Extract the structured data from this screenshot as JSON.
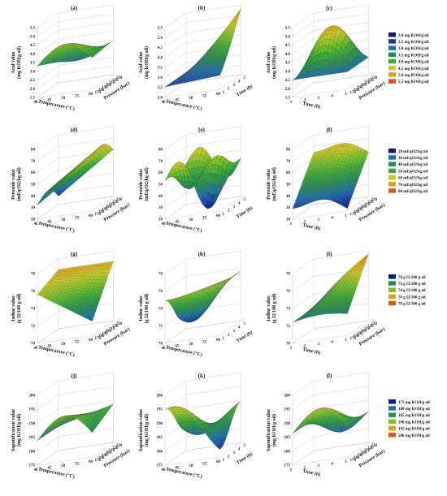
{
  "colorscale": [
    "#0a1a7a",
    "#1a3aa0",
    "#1f6fa8",
    "#2a8a55",
    "#3aa83a",
    "#7cc02c",
    "#c8c82a",
    "#e0a020",
    "#d85a18"
  ],
  "chart_data": [
    {
      "type": "surface",
      "label": "(a)",
      "zlabel": "Acid value\n(mg KOH/g oil)",
      "xlabel": "Temperature (°C)",
      "ylabel": "Pressure (bar)",
      "zticks": [
        "1.5",
        "2.0",
        "2.5",
        "3.0",
        "3.5",
        "4.0",
        "4.5",
        "5.0",
        "5.5"
      ],
      "xticks": [
        "40",
        "45",
        "50",
        "55",
        "60"
      ],
      "yticks": [
        "170",
        "180",
        "190",
        "200",
        "210",
        "220",
        "230"
      ],
      "zrange": [
        1.5,
        5.5
      ]
    },
    {
      "type": "surface",
      "label": "(b)",
      "zlabel": "Acid value\n(mg KOH/g oil)",
      "xlabel": "Temperature (°C)",
      "ylabel": "Time (h)",
      "zticks": [
        "2.0",
        "2.5",
        "3.0",
        "3.5",
        "4.0",
        "4.5",
        "5.0",
        "5.5"
      ],
      "xticks": [
        "40",
        "45",
        "50",
        "55",
        "60"
      ],
      "yticks": [
        "1",
        "2",
        "3",
        "4",
        "5"
      ],
      "zrange": [
        2.0,
        5.5
      ]
    },
    {
      "type": "surface",
      "label": "(c)",
      "zlabel": "Acid value\n(mg KOH/g oil)",
      "xlabel": "Time (h)",
      "ylabel": "Pressure (bar)",
      "zticks": [
        "1.5",
        "2.0",
        "2.5",
        "3.0",
        "3.5",
        "4.0",
        "4.5",
        "5.0",
        "5.5"
      ],
      "xticks": [
        "1",
        "2",
        "3",
        "4",
        "5"
      ],
      "yticks": [
        "170",
        "180",
        "190",
        "200",
        "210",
        "220",
        "230"
      ],
      "zrange": [
        1.5,
        5.5
      ]
    },
    {
      "type": "surface",
      "label": "(d)",
      "zlabel": "Peroxide value\n(mEq/O2/kg oil)",
      "xlabel": "Temperature (°C)",
      "ylabel": "Pressure (bar)",
      "zticks": [
        "20",
        "30",
        "40",
        "50",
        "60",
        "70",
        "80"
      ],
      "xticks": [
        "40",
        "45",
        "50",
        "55",
        "60"
      ],
      "yticks": [
        "170",
        "180",
        "190",
        "200",
        "210",
        "220",
        "230"
      ],
      "zrange": [
        20,
        80
      ]
    },
    {
      "type": "surface",
      "label": "(e)",
      "zlabel": "Peroxide value\n(mEq/O2/kg oil)",
      "xlabel": "Temperature (°C)",
      "ylabel": "Time (h)",
      "zticks": [
        "20",
        "30",
        "40",
        "50",
        "60",
        "70",
        "80"
      ],
      "xticks": [
        "40",
        "45",
        "50",
        "55",
        "60"
      ],
      "yticks": [
        "1",
        "2",
        "3",
        "4",
        "5"
      ],
      "zrange": [
        20,
        80
      ]
    },
    {
      "type": "surface",
      "label": "(f)",
      "zlabel": "Peroxide value\n(mEq/O2/kg oil)",
      "xlabel": "Time (h)",
      "ylabel": "Pressure (bar)",
      "zticks": [
        "20",
        "30",
        "40",
        "50",
        "60",
        "70",
        "80"
      ],
      "xticks": [
        "1",
        "2",
        "3",
        "4",
        "5"
      ],
      "yticks": [
        "170",
        "180",
        "190",
        "200",
        "210",
        "220",
        "230"
      ],
      "zrange": [
        20,
        80
      ]
    },
    {
      "type": "surface",
      "label": "(g)",
      "zlabel": "Iodine value\n(g I2/100 g oil)",
      "xlabel": "Temperature (°C)",
      "ylabel": "Pressure (bar)",
      "zticks": [
        "70",
        "72",
        "74",
        "76",
        "78"
      ],
      "xticks": [
        "40",
        "45",
        "50",
        "55",
        "60"
      ],
      "yticks": [
        "170",
        "180",
        "190",
        "200",
        "210",
        "220",
        "230"
      ],
      "zrange": [
        70,
        78
      ]
    },
    {
      "type": "surface",
      "label": "(h)",
      "zlabel": "Iodine value\n(g I2/100 g oil)",
      "xlabel": "Temperature (°C)",
      "ylabel": "Time (h)",
      "zticks": [
        "70",
        "72",
        "74",
        "76",
        "78"
      ],
      "xticks": [
        "40",
        "45",
        "50",
        "55",
        "60"
      ],
      "yticks": [
        "1",
        "2",
        "3",
        "4",
        "5"
      ],
      "zrange": [
        70,
        78
      ]
    },
    {
      "type": "surface",
      "label": "(i)",
      "zlabel": "Iodine value\n(g I2/100 g oil)",
      "xlabel": "Time (h)",
      "ylabel": "Pressure (bar)",
      "zticks": [
        "70",
        "72",
        "74",
        "76",
        "78"
      ],
      "xticks": [
        "1",
        "2",
        "3",
        "4",
        "5"
      ],
      "yticks": [
        "170",
        "180",
        "190",
        "200",
        "210",
        "220",
        "230"
      ],
      "zrange": [
        70,
        78
      ]
    },
    {
      "type": "surface",
      "label": "(j)",
      "zlabel": "Saponification value\n(mg KOH/g oil)",
      "xlabel": "Temperature (°C)",
      "ylabel": "Pressure (bar)",
      "zticks": [
        "175",
        "180",
        "185",
        "190",
        "195",
        "200"
      ],
      "xticks": [
        "40",
        "45",
        "50",
        "55",
        "60"
      ],
      "yticks": [
        "170",
        "180",
        "190",
        "200",
        "210",
        "220",
        "230"
      ],
      "zrange": [
        175,
        200
      ]
    },
    {
      "type": "surface",
      "label": "(k)",
      "zlabel": "Saponification value\n(mg KOH/g oil)",
      "xlabel": "Temperature (°C)",
      "ylabel": "Time (h)",
      "zticks": [
        "175",
        "180",
        "185",
        "190",
        "195",
        "200"
      ],
      "xticks": [
        "40",
        "45",
        "50",
        "55",
        "60"
      ],
      "yticks": [
        "1",
        "2",
        "3",
        "4",
        "5"
      ],
      "zrange": [
        175,
        200
      ]
    },
    {
      "type": "surface",
      "label": "(l)",
      "zlabel": "Saponification value\n(mg KOH/g oil)",
      "xlabel": "Time (h)",
      "ylabel": "Pressure (bar)",
      "zticks": [
        "175",
        "180",
        "185",
        "190",
        "195",
        "200"
      ],
      "xticks": [
        "1",
        "2",
        "3",
        "4",
        "5"
      ],
      "yticks": [
        "170",
        "180",
        "190",
        "200",
        "210",
        "220",
        "230"
      ],
      "zrange": [
        175,
        200
      ]
    }
  ],
  "legends": [
    {
      "entries": [
        "2.0 mg KOH/g oil",
        "2.5 mg KOH/g oil",
        "3.0 mg KOH/g oil",
        "3.5 mg KOH/g oil",
        "4.0 mg KOH/g oil",
        "4.5 mg KOH/g oil",
        "5.0 mg KOH/g oil",
        "5.5 mg KOH/g oil"
      ],
      "colors": [
        "#0a1a7a",
        "#1a3aa0",
        "#1f6fa8",
        "#2a8a55",
        "#3aa83a",
        "#c8c82a",
        "#e0a020",
        "#d85a18"
      ]
    },
    {
      "entries": [
        "20 mEqO2/kg oil",
        "30 mEqO2/kg oil",
        "40 mEqO2/kg oil",
        "50 mEqO2/kg oil",
        "60 mEqO2/kg oil",
        "70 mEqO2/kg oil",
        "80 mEqO2/kg oil"
      ],
      "colors": [
        "#0a1a7a",
        "#1f6fa8",
        "#2a8a55",
        "#3aa83a",
        "#c8c82a",
        "#e0a020",
        "#d85a18"
      ]
    },
    {
      "entries": [
        "70 g I2/100 g oil",
        "72 g I2/100 g oil",
        "74 g I2/100 g oil",
        "76 g I2/100 g oil",
        "78 g I2/100 g oil"
      ],
      "colors": [
        "#0a1a7a",
        "#2a8a55",
        "#7cc02c",
        "#e0a020",
        "#d85a18"
      ]
    },
    {
      "entries": [
        "175 mg KOH/g oil",
        "180 mg KOH/g oil",
        "185 mg KOH/g oil",
        "190 mg KOH/g oil",
        "195 mg KOH/g oil",
        "200 mg KOH/g oil"
      ],
      "colors": [
        "#0a1a7a",
        "#1f6fa8",
        "#2a8a55",
        "#7cc02c",
        "#e0a020",
        "#d85a18"
      ]
    }
  ]
}
